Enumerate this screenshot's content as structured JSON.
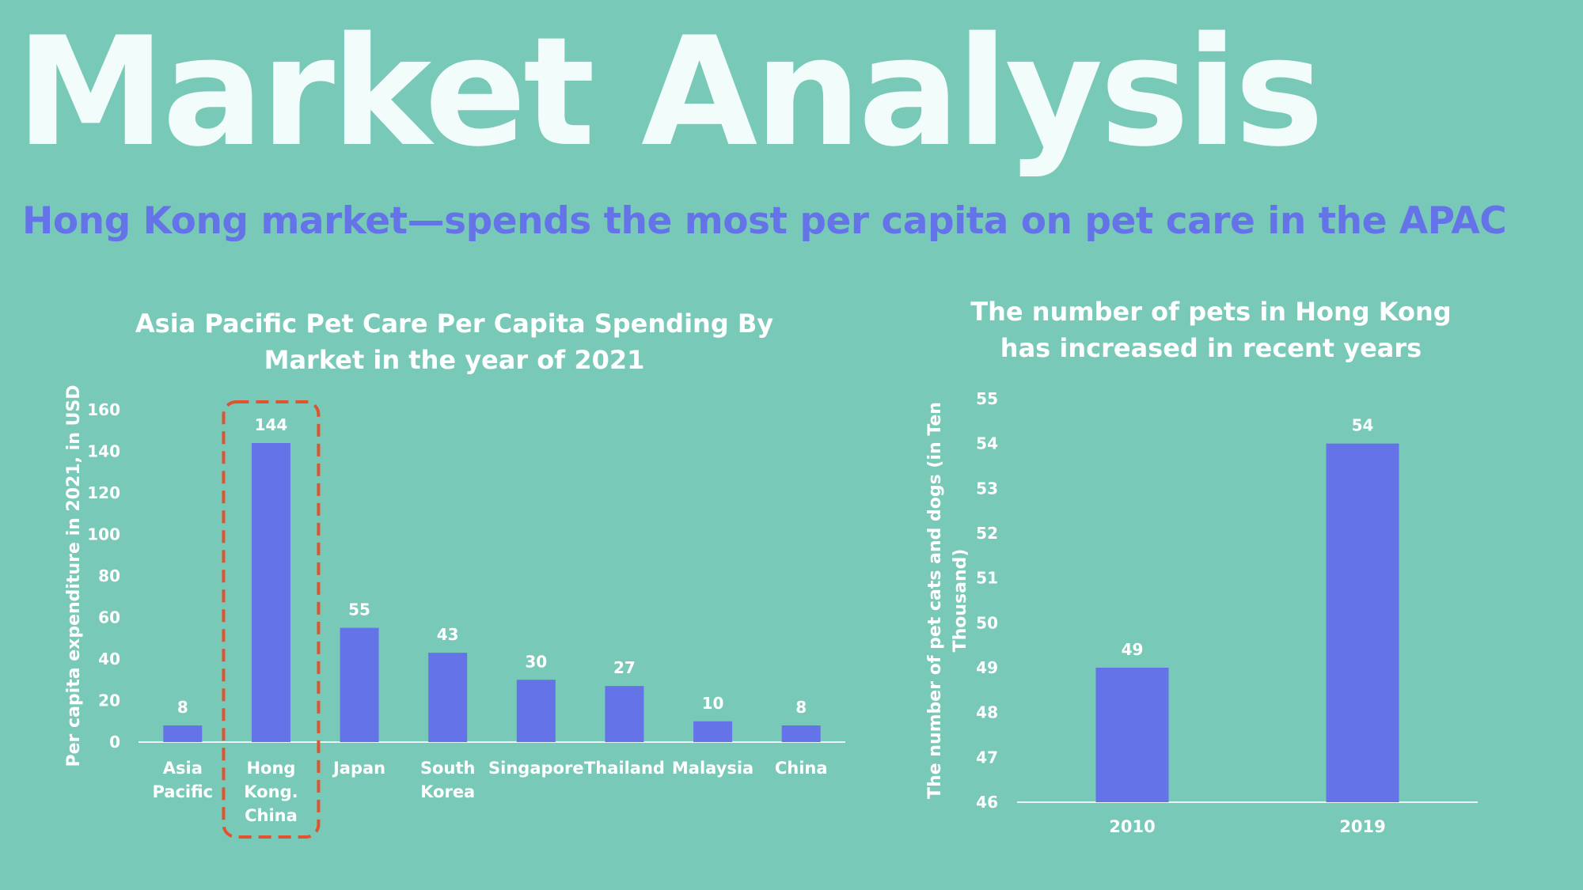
{
  "slide": {
    "title": "Market Analysis",
    "subtitle": "Hong Kong market—spends the most per capita on pet care in the APAC"
  },
  "colors": {
    "background": "#79c9b9",
    "bar": "#6474e8",
    "highlight": "#e0532f",
    "subtitle": "#6474e8"
  },
  "chart_data": [
    {
      "type": "bar",
      "title_lines": [
        "Asia Pacific Pet Care Per Capita Spending By",
        "Market in the year of 2021"
      ],
      "ylabel": "Per capita expenditure in 2021, in USD",
      "xlabel": "",
      "categories": [
        [
          "Asia",
          "Pacific"
        ],
        [
          "Hong",
          "Kong.",
          "China"
        ],
        [
          "Japan"
        ],
        [
          "South",
          "Korea"
        ],
        [
          "Singapore"
        ],
        [
          "Thailand"
        ],
        [
          "Malaysia"
        ],
        [
          "China"
        ]
      ],
      "values": [
        8,
        144,
        55,
        43,
        30,
        27,
        10,
        8
      ],
      "data_labels": [
        "8",
        "144",
        "55",
        "43",
        "30",
        "27",
        "10",
        "8"
      ],
      "ylim": [
        0,
        160
      ],
      "yticks": [
        "0",
        "20",
        "40",
        "60",
        "80",
        "100",
        "120",
        "140",
        "160"
      ],
      "highlight_index": 1,
      "grid": false
    },
    {
      "type": "bar",
      "title_lines": [
        "The number of pets in Hong Kong",
        "has increased in recent years"
      ],
      "ylabel_lines": [
        "The number of pet cats and dogs (in Ten",
        "Thousand)"
      ],
      "xlabel": "",
      "categories": [
        "2010",
        "2019"
      ],
      "values": [
        49,
        54
      ],
      "data_labels": [
        "49",
        "54"
      ],
      "ylim": [
        46,
        55
      ],
      "yticks": [
        "46",
        "47",
        "48",
        "49",
        "50",
        "51",
        "52",
        "53",
        "54",
        "55"
      ],
      "grid": false
    }
  ]
}
